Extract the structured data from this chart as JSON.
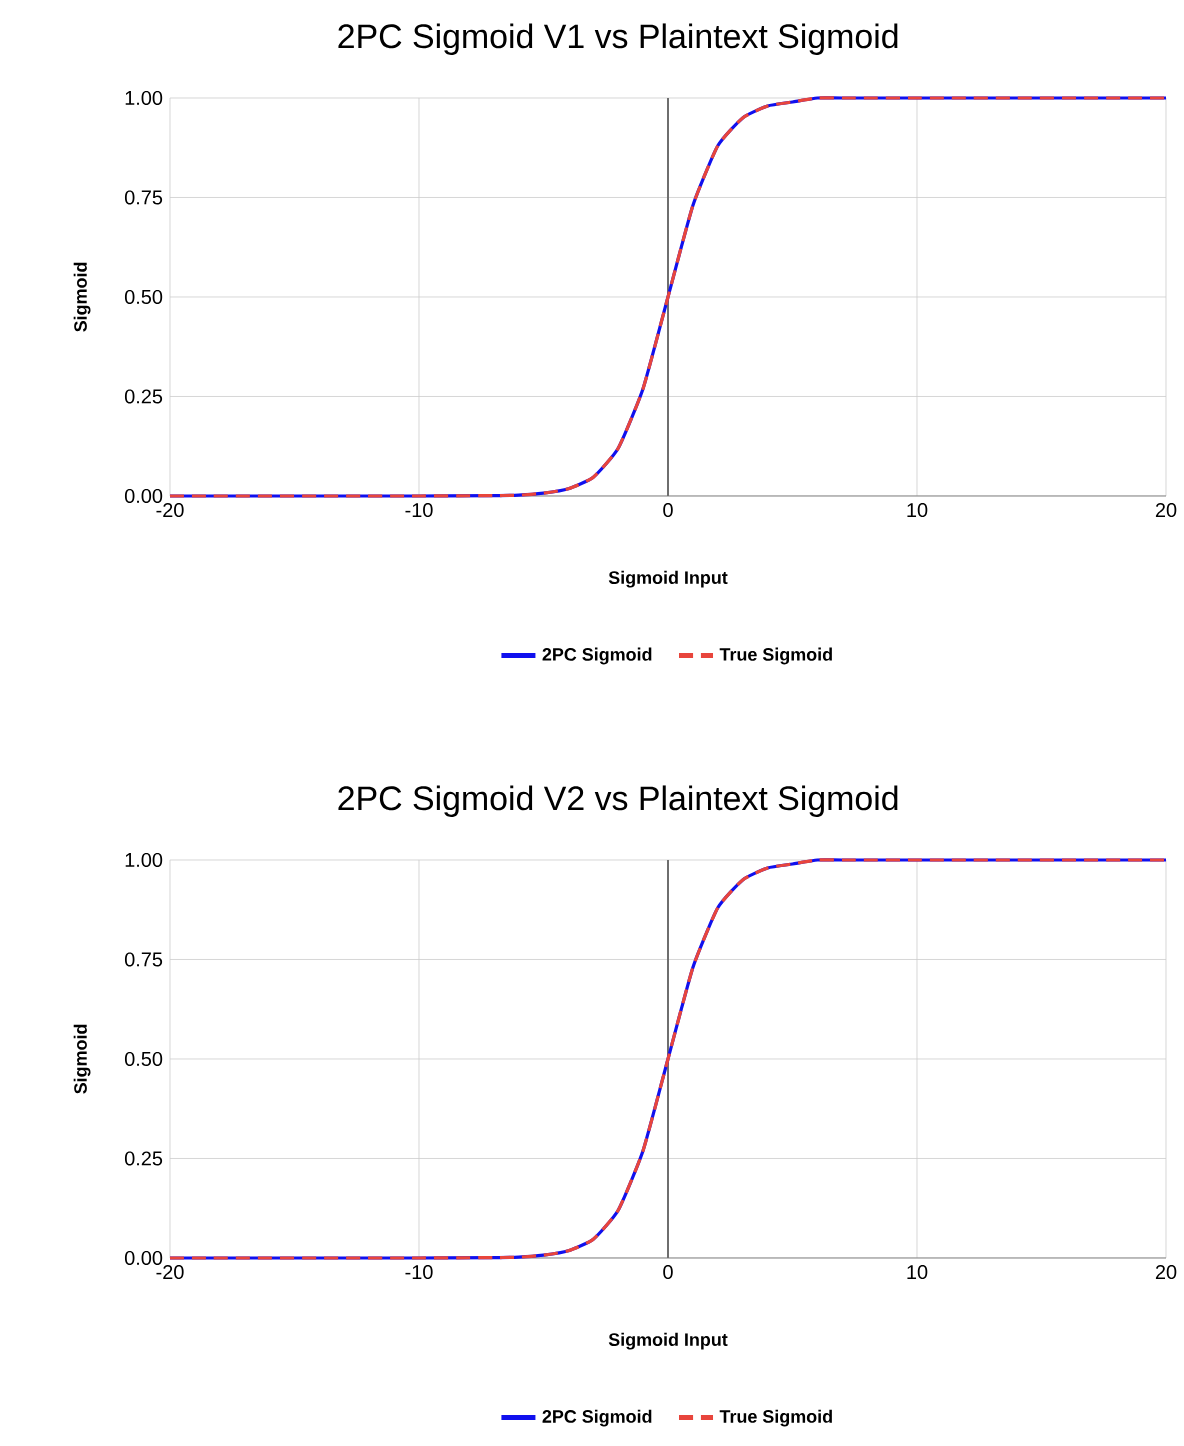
{
  "chart_data": [
    {
      "type": "line",
      "title": "2PC Sigmoid V1 vs Plaintext Sigmoid",
      "xlabel": "Sigmoid Input",
      "ylabel": "Sigmoid",
      "x": [
        -20,
        -10,
        -7,
        -6,
        -5,
        -4,
        -3,
        -2,
        -1,
        0,
        1,
        2,
        3,
        4,
        5,
        6,
        7,
        10,
        20
      ],
      "series": [
        {
          "name": "2PC Sigmoid",
          "color": "#1010ee",
          "line_style": "solid",
          "values": [
            0,
            0,
            0.001,
            0.002,
            0.007,
            0.018,
            0.047,
            0.12,
            0.27,
            0.5,
            0.73,
            0.88,
            0.95,
            0.98,
            0.99,
            1.0,
            1.0,
            1.0,
            1.0
          ]
        },
        {
          "name": "True Sigmoid",
          "color": "#e8453c",
          "line_style": "dashed",
          "values": [
            0,
            0,
            0.001,
            0.002,
            0.007,
            0.018,
            0.047,
            0.12,
            0.27,
            0.5,
            0.73,
            0.88,
            0.95,
            0.98,
            0.99,
            1.0,
            1.0,
            1.0,
            1.0
          ]
        }
      ],
      "xlim": [
        -20,
        20
      ],
      "xticks": [
        -20,
        -10,
        0,
        10,
        20
      ],
      "ylim": [
        0,
        1
      ],
      "yticks": [
        {
          "value": 0,
          "label": "0.00"
        },
        {
          "value": 0.25,
          "label": "0.25"
        },
        {
          "value": 0.5,
          "label": "0.50"
        },
        {
          "value": 0.75,
          "label": "0.75"
        },
        {
          "value": 1,
          "label": "1.00"
        }
      ],
      "ref_lines": [
        {
          "axis": "x",
          "value": 0,
          "label": null,
          "color": "#6e6e6e"
        }
      ],
      "grid": true,
      "legend": "bottom"
    },
    {
      "type": "line",
      "title": "2PC Sigmoid V2 vs Plaintext Sigmoid",
      "xlabel": "Sigmoid Input",
      "ylabel": "Sigmoid",
      "x": [
        -20,
        -10,
        -7,
        -6,
        -5,
        -4,
        -3,
        -2,
        -1,
        0,
        1,
        2,
        3,
        4,
        5,
        6,
        7,
        10,
        20
      ],
      "series": [
        {
          "name": "2PC Sigmoid",
          "color": "#1010ee",
          "line_style": "solid",
          "values": [
            0,
            0,
            0.001,
            0.002,
            0.007,
            0.018,
            0.047,
            0.12,
            0.27,
            0.5,
            0.73,
            0.88,
            0.95,
            0.98,
            0.99,
            1.0,
            1.0,
            1.0,
            1.0
          ]
        },
        {
          "name": "True Sigmoid",
          "color": "#e8453c",
          "line_style": "dashed",
          "values": [
            0,
            0,
            0.001,
            0.002,
            0.007,
            0.018,
            0.047,
            0.12,
            0.27,
            0.5,
            0.73,
            0.88,
            0.95,
            0.98,
            0.99,
            1.0,
            1.0,
            1.0,
            1.0
          ]
        }
      ],
      "xlim": [
        -20,
        20
      ],
      "xticks": [
        -20,
        -10,
        0,
        10,
        20
      ],
      "ylim": [
        0,
        1
      ],
      "yticks": [
        {
          "value": 0,
          "label": "0.00"
        },
        {
          "value": 0.25,
          "label": "0.25"
        },
        {
          "value": 0.5,
          "label": "0.50"
        },
        {
          "value": 0.75,
          "label": "0.75"
        },
        {
          "value": 1,
          "label": "1.00"
        }
      ],
      "ref_lines": [
        {
          "axis": "x",
          "value": 0,
          "label": null,
          "color": "#6e6e6e"
        }
      ],
      "grid": true,
      "legend": "bottom"
    }
  ]
}
